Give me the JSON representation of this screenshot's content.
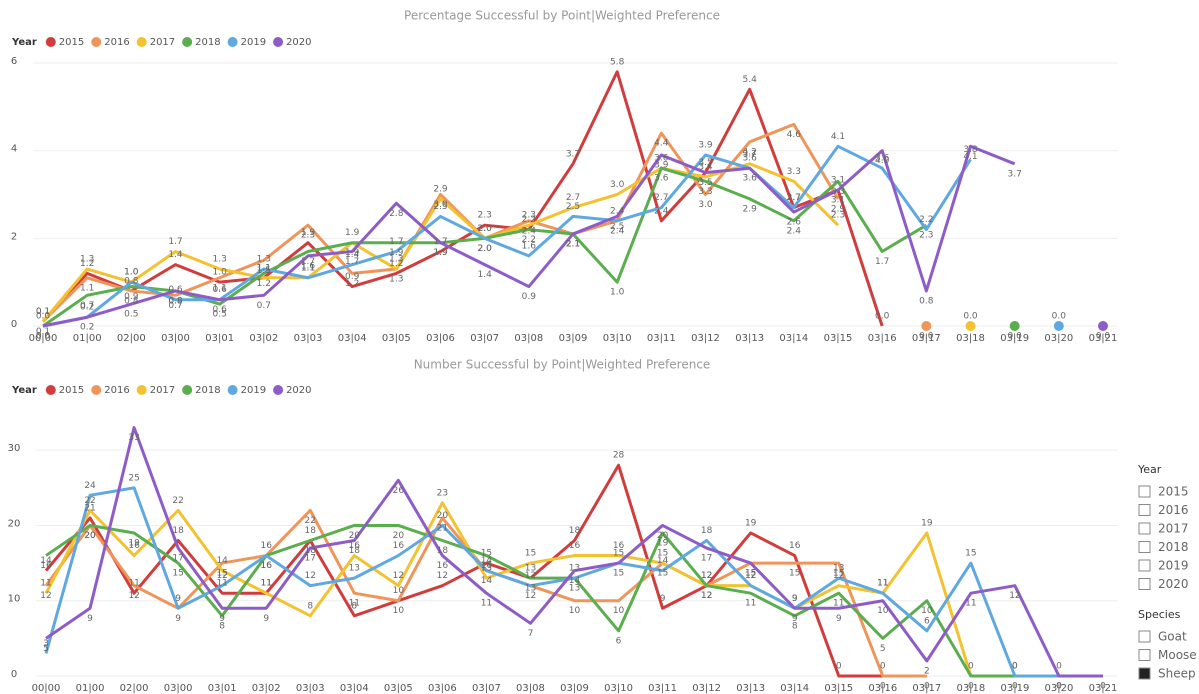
{
  "chart_data": [
    {
      "type": "line",
      "title": "Percentage Successful by Point|Weighted Preference",
      "legend_title": "Year",
      "grid": true,
      "categories": [
        "00|00",
        "01|00",
        "02|00",
        "03|00",
        "03|01",
        "03|02",
        "03|03",
        "03|04",
        "03|05",
        "03|06",
        "03|07",
        "03|08",
        "03|09",
        "03|10",
        "03|11",
        "03|12",
        "03|13",
        "03|14",
        "03|15",
        "03|16",
        "03|17",
        "03|18",
        "03|19",
        "03|20",
        "03|21"
      ],
      "ylim": [
        0,
        6
      ],
      "yticks": [
        0,
        2,
        4,
        6
      ],
      "series": [
        {
          "name": "2015",
          "color": "#d13c3c",
          "values": [
            0.1,
            1.2,
            0.8,
            1.4,
            1,
            1.1,
            1.9,
            0.9,
            1.2,
            1.7,
            2.3,
            2.2,
            3.7,
            5.8,
            2.4,
            3.5,
            5.4,
            2.7,
            3.1,
            0,
            null,
            null,
            null,
            null,
            null
          ],
          "value_labels": [
            "0.1",
            "1.2",
            "0.8",
            "1.4",
            "1.0",
            "1.1",
            "1.9",
            "0.9",
            "1.2",
            "1.7",
            "2.3",
            "2.2",
            "3.7",
            "5.8",
            "2.4",
            "3.5",
            "5.4",
            "2.7",
            "3.1",
            "0.0",
            null,
            null,
            null,
            null,
            null
          ]
        },
        {
          "name": "2016",
          "color": "#f0955a",
          "values": [
            0.1,
            1.1,
            0.8,
            0.7,
            1.1,
            1.5,
            2.3,
            1.2,
            1.3,
            3,
            2,
            2.4,
            2.1,
            2.4,
            4.4,
            3,
            4.2,
            4.6,
            2.9,
            null,
            0,
            null,
            null,
            null,
            null
          ],
          "value_labels": [
            "0.1",
            "1.1",
            "0.8",
            "0.7",
            "1.1",
            "1.5",
            "2.3",
            "1.2",
            "1.3",
            "3.0",
            "2.0",
            "2.4",
            "2.1",
            "2.4",
            "4.4",
            "3.0",
            "4.2",
            "4.6",
            "2.9",
            null,
            "0.0",
            null,
            null,
            null,
            null
          ]
        },
        {
          "name": "2017",
          "color": "#f2c231",
          "values": [
            0.1,
            1.3,
            1,
            1.7,
            1.3,
            1.1,
            1.1,
            1.9,
            1.3,
            2.9,
            2,
            2.3,
            2.7,
            3,
            3.6,
            3.4,
            3.7,
            3.3,
            2.3,
            null,
            null,
            0,
            null,
            null,
            null
          ],
          "value_labels": [
            "0.1",
            "1.3",
            "1.0",
            "1.7",
            "1.3",
            "1.1",
            "1.1",
            "1.9",
            "1.3",
            "2.9",
            "2.0",
            "2.3",
            "2.7",
            "3.0",
            "3.6",
            "3.4",
            "3.7",
            "3.3",
            "2.3",
            null,
            null,
            "0.0",
            null,
            null,
            null
          ]
        },
        {
          "name": "2018",
          "color": "#5aae4e",
          "values": [
            0,
            0.7,
            0.9,
            0.8,
            0.5,
            1.2,
            1.7,
            1.9,
            1.9,
            1.9,
            2,
            2.2,
            2.1,
            1,
            3.6,
            3.3,
            2.9,
            2.4,
            3.3,
            1.7,
            2.3,
            null,
            0,
            null,
            null
          ],
          "value_labels": [
            "0.0",
            "0.7",
            "0.9",
            "0.8",
            "0.5",
            "1.2",
            "1.7",
            "1.9",
            "1.9",
            "1.9",
            "2.0",
            "2.2",
            "2.1",
            "1.0",
            "3.6",
            "3.3",
            "2.9",
            "2.4",
            "3.3",
            "1.7",
            "2.3",
            null,
            "0.0",
            null,
            null
          ]
        },
        {
          "name": "2019",
          "color": "#5fa8e0",
          "values": [
            0,
            0.2,
            1,
            0.6,
            0.6,
            1.3,
            1.1,
            1.4,
            1.7,
            2.5,
            2,
            1.6,
            2.5,
            2.4,
            2.7,
            3.9,
            3.6,
            2.7,
            4.1,
            3.6,
            2.2,
            3.8,
            null,
            0,
            null
          ],
          "value_labels": [
            "0.0",
            "0.2",
            "1.0",
            "0.6",
            "0.6",
            "1.3",
            "1.1",
            "1.4",
            "1.7",
            "2.5",
            "2.0",
            "1.6",
            "2.5",
            "2.4",
            "2.7",
            "3.9",
            "3.6",
            "2.7",
            "4.1",
            "3.6",
            "2.2",
            "3.8",
            null,
            "0.0",
            null
          ]
        },
        {
          "name": "2020",
          "color": "#8e5cc7",
          "values": [
            0,
            0.2,
            0.5,
            0.8,
            0.6,
            0.7,
            1.6,
            1.7,
            2.8,
            1.9,
            1.4,
            0.9,
            2.1,
            2.5,
            3.9,
            3.5,
            3.6,
            2.6,
            3.1,
            4,
            0.8,
            4.1,
            3.7,
            null,
            0
          ],
          "value_labels": [
            "0.0",
            "0.2",
            "0.5",
            "0.8",
            "0.6",
            "0.7",
            "1.6",
            "1.7",
            "2.8",
            "1.9",
            "1.4",
            "0.9",
            "2.1",
            "2.5",
            "3.9",
            "3.5",
            "3.6",
            "2.6",
            "3.1",
            "4.0",
            "0.8",
            "4.1",
            "3.7",
            null,
            "0.0"
          ]
        }
      ]
    },
    {
      "type": "line",
      "title": "Number Successful by Point|Weighted Preference",
      "legend_title": "Year",
      "grid": true,
      "categories": [
        "00|00",
        "01|00",
        "02|00",
        "03|00",
        "03|01",
        "03|02",
        "03|03",
        "03|04",
        "03|05",
        "03|06",
        "03|07",
        "03|08",
        "03|09",
        "03|10",
        "03|11",
        "03|12",
        "03|13",
        "03|14",
        "03|15",
        "03|16",
        "03|17",
        "03|18",
        "03|19",
        "03|20",
        "03|21"
      ],
      "ylim": [
        0,
        36
      ],
      "yticks": [
        0,
        10,
        20,
        30
      ],
      "series": [
        {
          "name": "2015",
          "color": "#d13c3c",
          "values": [
            14,
            21,
            11,
            18,
            11,
            11,
            18,
            8,
            10,
            12,
            15,
            13,
            18,
            28,
            9,
            12,
            19,
            16,
            0,
            0,
            null,
            null,
            null,
            null,
            null
          ]
        },
        {
          "name": "2016",
          "color": "#f0955a",
          "values": [
            12,
            20,
            12,
            9,
            15,
            16,
            22,
            11,
            10,
            21,
            14,
            12,
            10,
            10,
            15,
            12,
            15,
            15,
            15,
            0,
            0,
            null,
            null,
            null,
            null
          ]
        },
        {
          "name": "2017",
          "color": "#f2c231",
          "values": [
            11,
            22,
            16,
            22,
            14,
            11,
            8,
            16,
            12,
            23,
            13,
            15,
            16,
            16,
            15,
            12,
            12,
            9,
            12,
            11,
            19,
            0,
            0,
            null,
            null
          ]
        },
        {
          "name": "2018",
          "color": "#5aae4e",
          "values": [
            16,
            20,
            19,
            15,
            8,
            16,
            18,
            20,
            20,
            18,
            16,
            13,
            13,
            6,
            19,
            12,
            11,
            8,
            11,
            5,
            10,
            0,
            0,
            0,
            null
          ]
        },
        {
          "name": "2019",
          "color": "#5fa8e0",
          "values": [
            3,
            24,
            25,
            9,
            12,
            16,
            12,
            13,
            16,
            20,
            14,
            12,
            13,
            15,
            14,
            18,
            12,
            9,
            13,
            11,
            6,
            15,
            0,
            0,
            null
          ]
        },
        {
          "name": "2020",
          "color": "#8e5cc7",
          "values": [
            5,
            9,
            33,
            17,
            9,
            9,
            17,
            18,
            26,
            16,
            11,
            7,
            14,
            15,
            20,
            17,
            15,
            9,
            9,
            10,
            2,
            11,
            12,
            0,
            0
          ]
        }
      ]
    }
  ],
  "slicers": [
    {
      "title": "Year",
      "items": [
        {
          "label": "2015",
          "checked": false
        },
        {
          "label": "2016",
          "checked": false
        },
        {
          "label": "2017",
          "checked": false
        },
        {
          "label": "2018",
          "checked": false
        },
        {
          "label": "2019",
          "checked": false
        },
        {
          "label": "2020",
          "checked": false
        }
      ]
    },
    {
      "title": "Species",
      "items": [
        {
          "label": "Goat",
          "checked": false
        },
        {
          "label": "Moose",
          "checked": false
        },
        {
          "label": "Sheep",
          "checked": true
        }
      ]
    }
  ]
}
